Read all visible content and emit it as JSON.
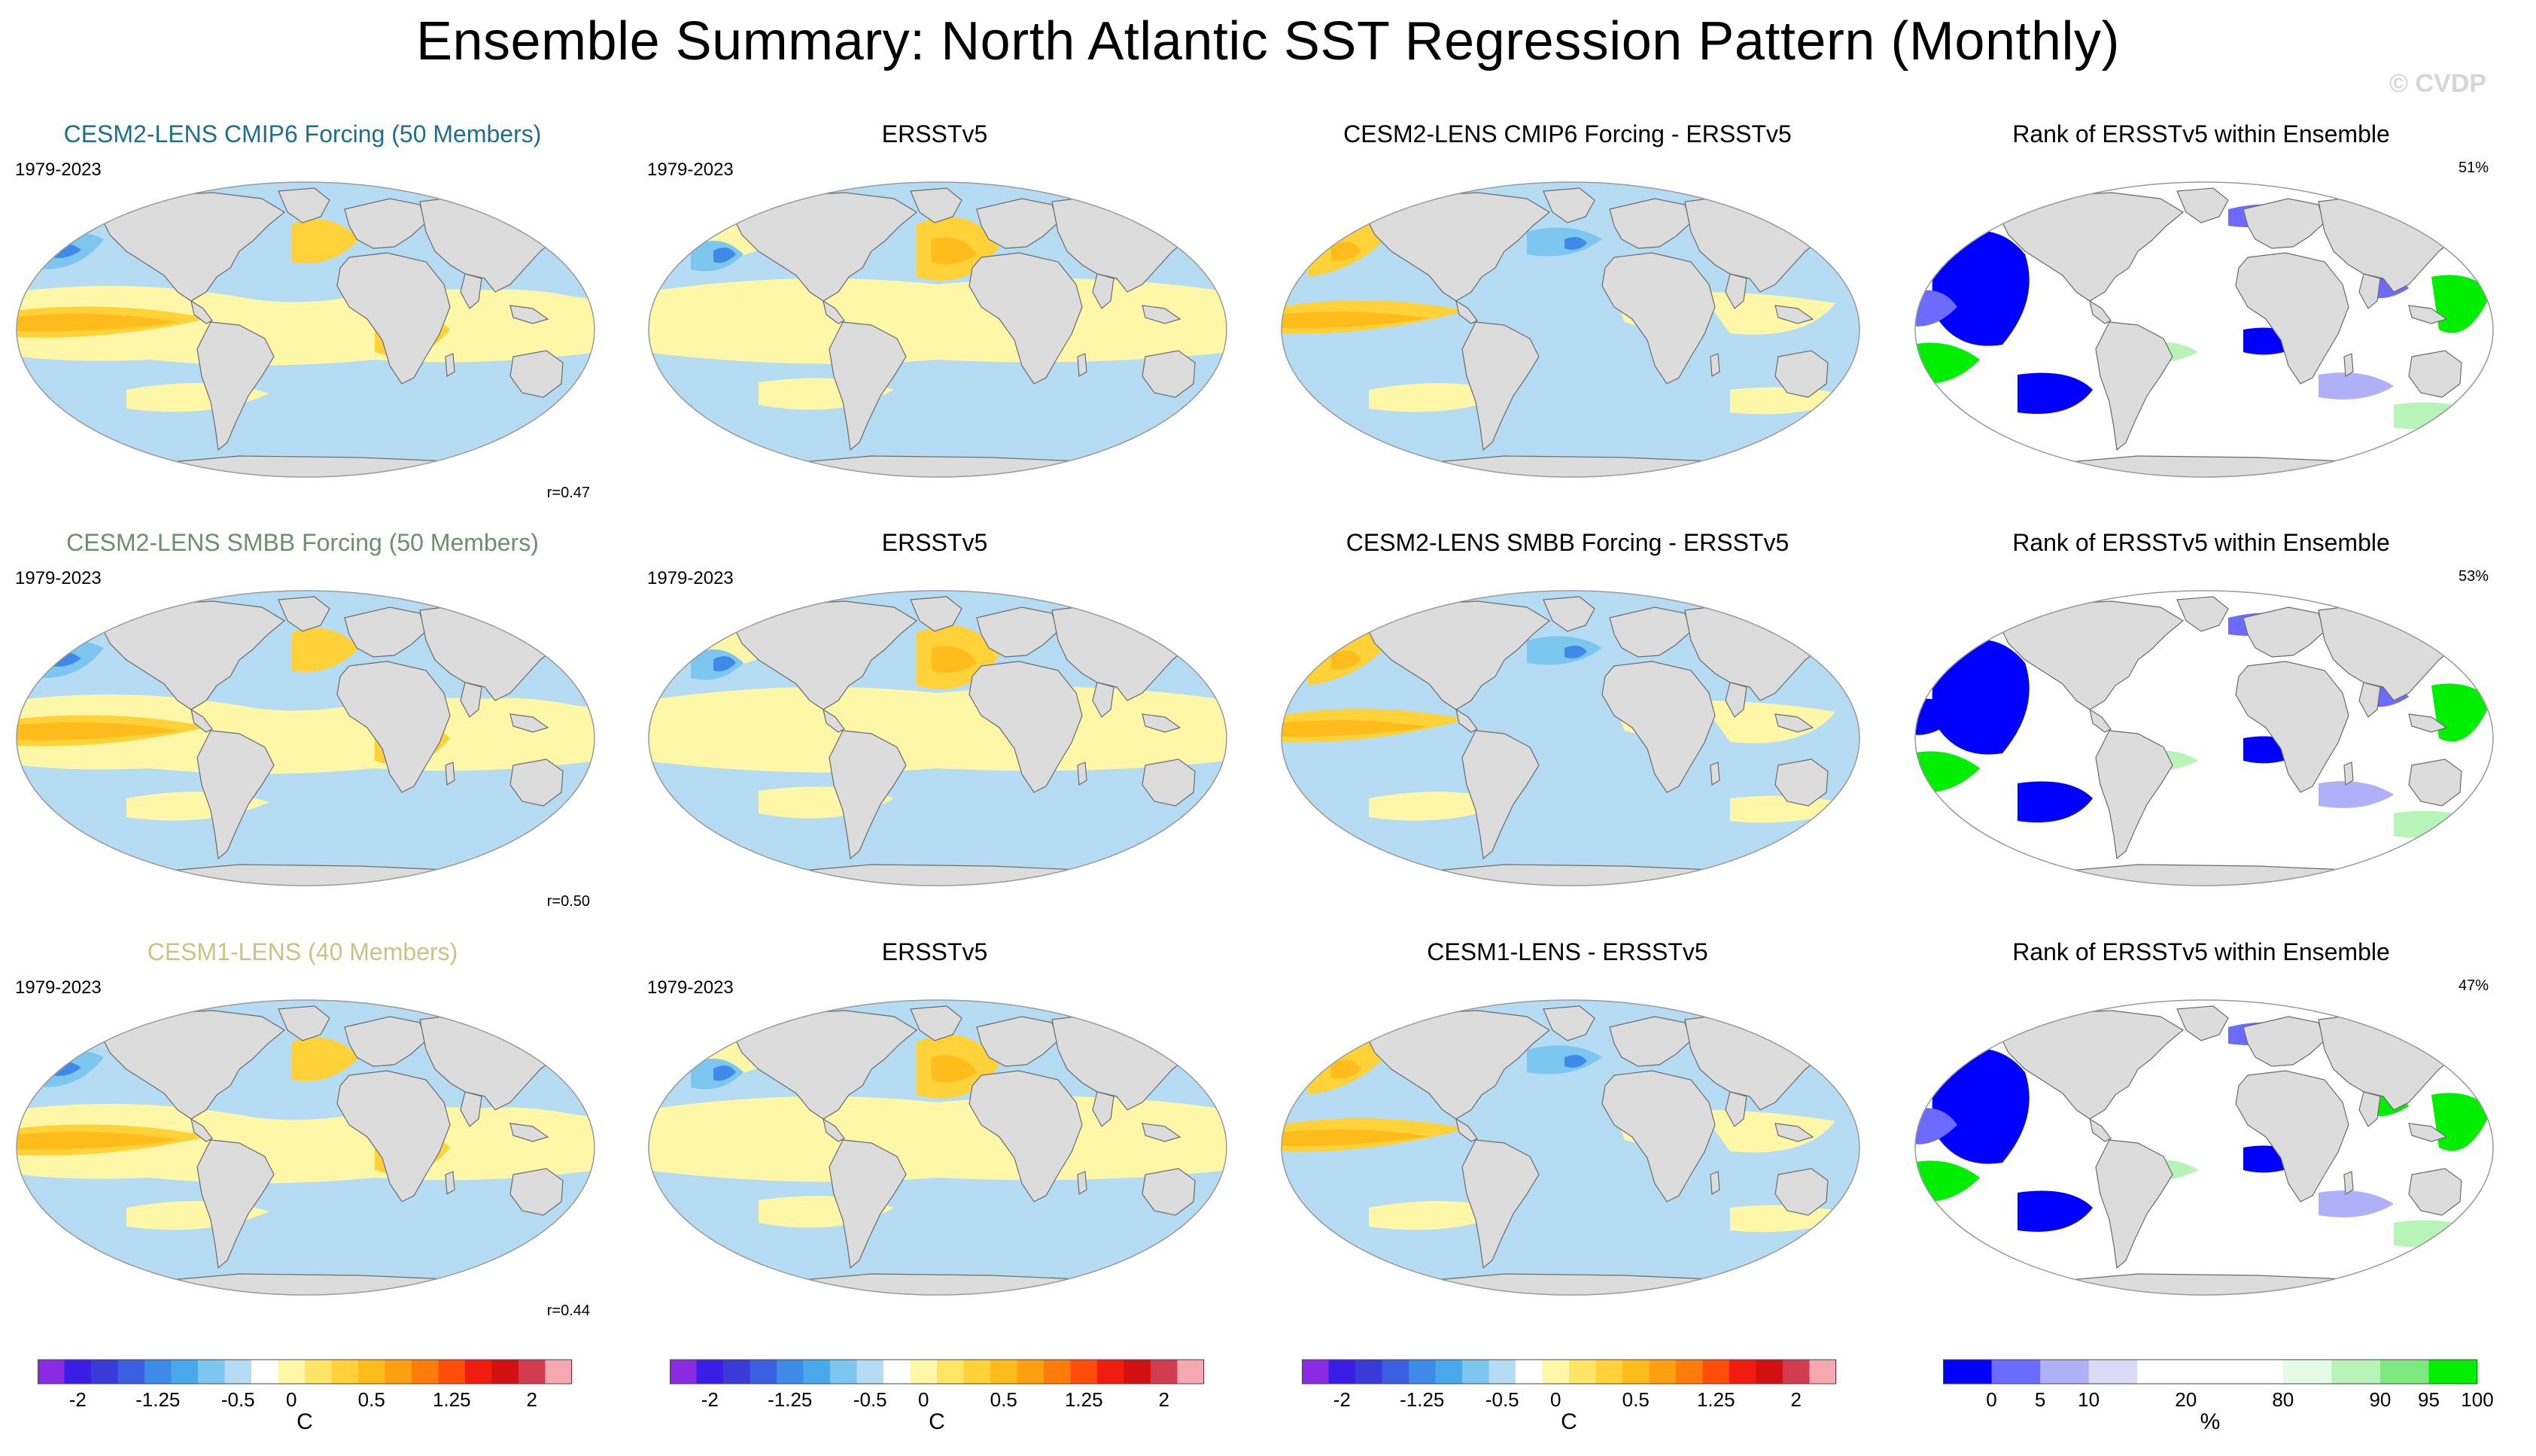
{
  "title": "Ensemble Summary: North Atlantic SST Regression Pattern (Monthly)",
  "watermark": "© CVDP",
  "chart_data": [
    {
      "type": "heatmap",
      "title": "CESM2-LENS CMIP6 Forcing (50 Members)",
      "title_color": "#1f6e8c",
      "period": "1979-2023",
      "stat": "r=0.47",
      "kind": "sst",
      "pattern": "model",
      "variant": "a"
    },
    {
      "type": "heatmap",
      "title": "ERSSTv5",
      "title_color": "#000000",
      "period": "1979-2023",
      "kind": "sst",
      "pattern": "obs",
      "variant": "a"
    },
    {
      "type": "heatmap",
      "title": "CESM2-LENS CMIP6 Forcing - ERSSTv5",
      "title_color": "#000000",
      "kind": "sst",
      "pattern": "diff",
      "variant": "a"
    },
    {
      "type": "heatmap",
      "title": "Rank of ERSSTv5 within Ensemble",
      "title_color": "#000000",
      "percent": "51%",
      "kind": "rank",
      "variant": "a"
    },
    {
      "type": "heatmap",
      "title": "CESM2-LENS SMBB Forcing (50 Members)",
      "title_color": "#6c8f6c",
      "period": "1979-2023",
      "stat": "r=0.50",
      "kind": "sst",
      "pattern": "model",
      "variant": "b"
    },
    {
      "type": "heatmap",
      "title": "ERSSTv5",
      "title_color": "#000000",
      "period": "1979-2023",
      "kind": "sst",
      "pattern": "obs",
      "variant": "b"
    },
    {
      "type": "heatmap",
      "title": "CESM2-LENS SMBB Forcing - ERSSTv5",
      "title_color": "#000000",
      "kind": "sst",
      "pattern": "diff",
      "variant": "b"
    },
    {
      "type": "heatmap",
      "title": "Rank of ERSSTv5 within Ensemble",
      "title_color": "#000000",
      "percent": "53%",
      "kind": "rank",
      "variant": "b"
    },
    {
      "type": "heatmap",
      "title": "CESM1-LENS (40 Members)",
      "title_color": "#c8c484",
      "period": "1979-2023",
      "stat": "r=0.44",
      "kind": "sst",
      "pattern": "model",
      "variant": "c"
    },
    {
      "type": "heatmap",
      "title": "ERSSTv5",
      "title_color": "#000000",
      "period": "1979-2023",
      "kind": "sst",
      "pattern": "obs",
      "variant": "c"
    },
    {
      "type": "heatmap",
      "title": "CESM1-LENS - ERSSTv5",
      "title_color": "#000000",
      "kind": "sst",
      "pattern": "diff",
      "variant": "c"
    },
    {
      "type": "heatmap",
      "title": "Rank of ERSSTv5 within Ensemble",
      "title_color": "#000000",
      "percent": "47%",
      "kind": "rank",
      "variant": "c"
    }
  ],
  "colorbars": [
    {
      "unit": "C",
      "labels": [
        "-2",
        "-1.25",
        "-0.5",
        "0",
        "0.5",
        "1.25",
        "2"
      ],
      "colors": [
        "#8a2be2",
        "#3a1ee8",
        "#3a3ad6",
        "#3a5fe0",
        "#3f8ae8",
        "#48a8ea",
        "#7cc6ef",
        "#b5dcf3",
        "#ffffff",
        "#fff7a8",
        "#ffe566",
        "#ffd23a",
        "#ffbc1a",
        "#ffa010",
        "#ff7b0a",
        "#ff4d0a",
        "#f01c10",
        "#d21010",
        "#d23c50",
        "#f5a8b2"
      ]
    },
    {
      "unit": "C",
      "labels": [
        "-2",
        "-1.25",
        "-0.5",
        "0",
        "0.5",
        "1.25",
        "2"
      ],
      "colors": [
        "#8a2be2",
        "#3a1ee8",
        "#3a3ad6",
        "#3a5fe0",
        "#3f8ae8",
        "#48a8ea",
        "#7cc6ef",
        "#b5dcf3",
        "#ffffff",
        "#fff7a8",
        "#ffe566",
        "#ffd23a",
        "#ffbc1a",
        "#ffa010",
        "#ff7b0a",
        "#ff4d0a",
        "#f01c10",
        "#d21010",
        "#d23c50",
        "#f5a8b2"
      ]
    },
    {
      "unit": "C",
      "labels": [
        "-2",
        "-1.25",
        "-0.5",
        "0",
        "0.5",
        "1.25",
        "2"
      ],
      "colors": [
        "#8a2be2",
        "#3a1ee8",
        "#3a3ad6",
        "#3a5fe0",
        "#3f8ae8",
        "#48a8ea",
        "#7cc6ef",
        "#b5dcf3",
        "#ffffff",
        "#fff7a8",
        "#ffe566",
        "#ffd23a",
        "#ffbc1a",
        "#ffa010",
        "#ff7b0a",
        "#ff4d0a",
        "#f01c10",
        "#d21010",
        "#d23c50",
        "#f5a8b2"
      ]
    },
    {
      "unit": "%",
      "labels": [
        "0",
        "5",
        "10",
        "20",
        "80",
        "90",
        "95",
        "100"
      ],
      "colors": [
        "#0000ff",
        "#6b6bff",
        "#b0b0f8",
        "#dadaf6",
        "#ffffff",
        "#ffffff",
        "#ffffff",
        "#e6fbe6",
        "#b8f3b8",
        "#7fe87f",
        "#00ee00"
      ]
    }
  ]
}
